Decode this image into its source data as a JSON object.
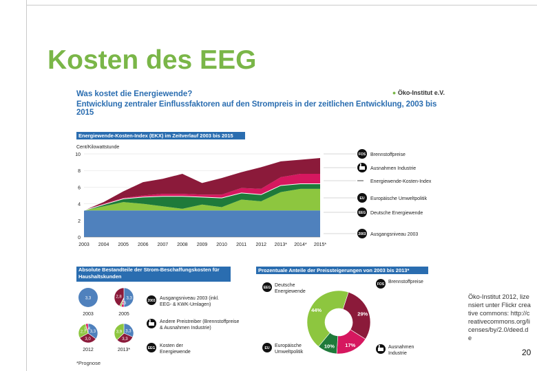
{
  "slide": {
    "title": "Kosten des EEG",
    "credit": "Öko-Institut 2012, lizensiert unter Flickr creative commons: http://creativecommons.org/licenses/by/2.0/deed.de",
    "page_number": "20"
  },
  "figure": {
    "title": "Was kostet die Energiewende?",
    "subtitle": "Entwicklung zentraler Einflussfaktoren auf den Strompreis in der zeitlichen Entwicklung, 2003 bis 2015",
    "logo": "Öko-Institut e.V.",
    "footnote": "*Prognose"
  },
  "chart_data": [
    {
      "type": "area",
      "title": "Energiewende-Kosten-Index (EKX) im Zeitverlauf 2003 bis 2015",
      "ylabel": "Cent/Kilowattstunde",
      "ylim": [
        0,
        10
      ],
      "yticks": [
        "0",
        "2",
        "4",
        "6",
        "8",
        "10"
      ],
      "categories": [
        "2003",
        "2004",
        "2005",
        "2006",
        "2007",
        "2008",
        "2009",
        "2010",
        "2011",
        "2012",
        "2013*",
        "2014*",
        "2015*"
      ],
      "series": [
        {
          "name": "Ausgangsniveau 2003",
          "color": "#4f81bd",
          "values": [
            3.2,
            3.2,
            3.2,
            3.2,
            3.2,
            3.2,
            3.2,
            3.2,
            3.2,
            3.2,
            3.2,
            3.2,
            3.2
          ]
        },
        {
          "name": "Deutsche Energiewende",
          "color": "#8dc63f",
          "values": [
            0.0,
            0.5,
            1.0,
            0.8,
            0.5,
            0.2,
            0.7,
            0.4,
            1.3,
            1.1,
            2.2,
            2.6,
            2.6
          ]
        },
        {
          "name": "Europäische Umweltpolitik",
          "color": "#1e7a3a",
          "values": [
            0.0,
            0.2,
            0.4,
            0.8,
            1.2,
            1.5,
            0.9,
            1.1,
            0.8,
            0.8,
            0.8,
            0.6,
            0.6
          ]
        },
        {
          "name": "Ausnahmen Industrie",
          "color": "#d6175f",
          "values": [
            0.0,
            0.1,
            0.1,
            0.2,
            0.3,
            0.3,
            0.3,
            0.4,
            0.6,
            0.7,
            1.0,
            1.2,
            1.2
          ]
        },
        {
          "name": "Brennstoffpreise",
          "color": "#8b1a3a",
          "values": [
            0.0,
            0.2,
            0.8,
            1.6,
            1.8,
            2.4,
            1.4,
            2.0,
            1.9,
            2.6,
            1.9,
            1.7,
            1.9
          ]
        }
      ],
      "legend": [
        {
          "badge": "FOS",
          "label": "Brennstoffpreise",
          "icon": "factory-icon"
        },
        {
          "badge": "",
          "label": "Ausnahmen Industrie",
          "icon": "factory-icon"
        },
        {
          "badge": "",
          "label": "Energiewende-Kosten-Index",
          "icon": ""
        },
        {
          "badge": "EU",
          "label": "Europäische Umweltpolitik",
          "icon": ""
        },
        {
          "badge": "EEG",
          "label": "Deutsche Energiewende",
          "icon": ""
        },
        {
          "badge": "2003",
          "label": "Ausgangsniveau 2003",
          "icon": ""
        }
      ]
    },
    {
      "type": "pie",
      "title": "Absolute Bestandteile der Strom-Beschaffungskosten für Haushaltskunden",
      "pies": [
        {
          "year": "2003",
          "slices": [
            {
              "label": "3,3",
              "value": 3.3,
              "color": "#4f81bd"
            }
          ]
        },
        {
          "year": "2005",
          "slices": [
            {
              "label": "3,3",
              "value": 3.3,
              "color": "#4f81bd"
            },
            {
              "label": "0,3",
              "value": 0.3,
              "color": "#d6175f"
            },
            {
              "label": "0,2",
              "value": 0.2,
              "color": "#8dc63f"
            },
            {
              "label": "2,8",
              "value": 2.8,
              "color": "#8b1a3a"
            }
          ]
        },
        {
          "year": "2012",
          "slices": [
            {
              "label": "3,3",
              "value": 3.3,
              "color": "#4f81bd"
            },
            {
              "label": "3,0",
              "value": 3.0,
              "color": "#8b1a3a"
            },
            {
              "label": "2,7",
              "value": 2.7,
              "color": "#8dc63f"
            },
            {
              "label": "0,4",
              "value": 0.4,
              "color": "#d6175f"
            }
          ]
        },
        {
          "year": "2013*",
          "slices": [
            {
              "label": "3,3",
              "value": 3.3,
              "color": "#4f81bd"
            },
            {
              "label": "3,3",
              "value": 3.3,
              "color": "#8b1a3a"
            },
            {
              "label": "3,9",
              "value": 3.9,
              "color": "#8dc63f"
            }
          ]
        }
      ],
      "legend": [
        {
          "label": "Ausgangsniveau 2003 (inkl. EEG- & KWK-Umlagen)",
          "marker": "2003"
        },
        {
          "label": "Andere Preistreiber (Brennstoffpreise & Ausnahmen Industrie)",
          "marker": "factory"
        },
        {
          "label": "Kosten der Energiewende",
          "marker": "EEG"
        }
      ]
    },
    {
      "type": "pie",
      "title": "Prozentuale Anteile der Preissteigerungen von 2003 bis 2013*",
      "slices": [
        {
          "label": "Deutsche Energiewende",
          "value": 44,
          "display": "44%",
          "color": "#8dc63f"
        },
        {
          "label": "Brennstoffpreise",
          "value": 29,
          "display": "29%",
          "color": "#8b1a3a"
        },
        {
          "label": "Ausnahmen Industrie",
          "value": 17,
          "display": "17%",
          "color": "#d6175f"
        },
        {
          "label": "Europäische Umweltpolitik",
          "value": 10,
          "display": "10%",
          "color": "#1e7a3a"
        }
      ],
      "legend": [
        {
          "badge": "EEG",
          "label": "Deutsche Energiewende"
        },
        {
          "badge": "FOS",
          "label": "Brennstoffpreise"
        },
        {
          "badge": "EU",
          "label": "Europäische Umweltpolitik"
        },
        {
          "badge": "",
          "label": "Ausnahmen Industrie"
        }
      ]
    }
  ]
}
